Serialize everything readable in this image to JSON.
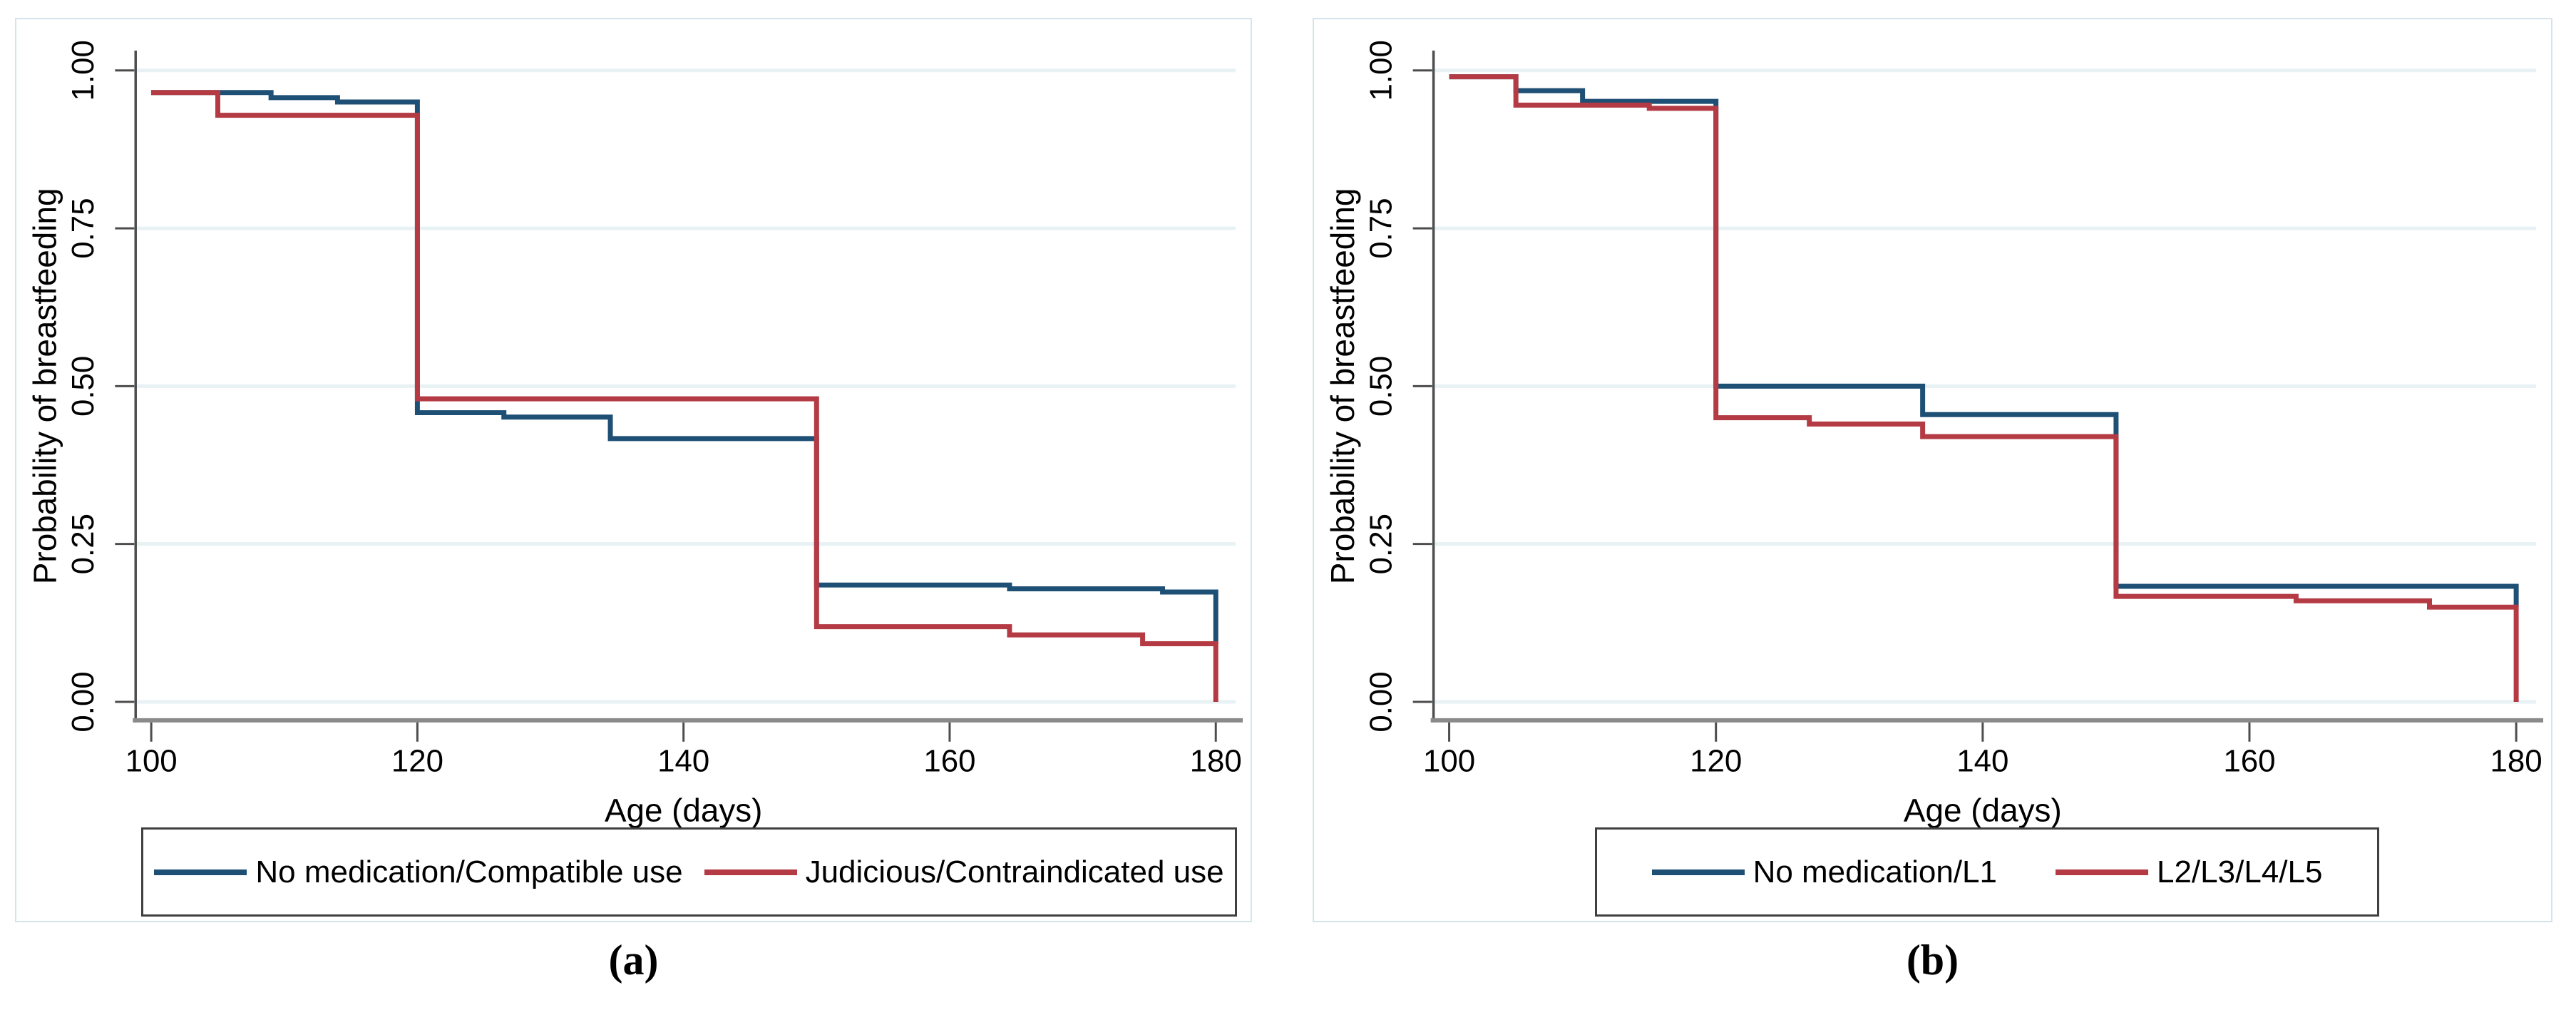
{
  "figure": {
    "captions": [
      "(a)",
      "(b)"
    ]
  },
  "styles": {
    "series_blue": "#1e4f74",
    "series_red": "#b43a44",
    "gridline": "#e8f1f3",
    "panel_border": "#d5e3eb",
    "x_axis_line": "#8a8a8a",
    "axis_dark": "#4d4d4d",
    "legend_border": "#404040",
    "text": "#000000",
    "background": "#ffffff"
  },
  "chart_data": [
    {
      "type": "line",
      "subtype": "kaplan-meier-step",
      "panel": "a",
      "title": "",
      "xlabel": "Age (days)",
      "ylabel": "Probability of breastfeeding",
      "xticks": [
        100,
        120,
        140,
        160,
        180
      ],
      "yticks": [
        1.0,
        0.75,
        0.5,
        0.25,
        0.0
      ],
      "ytick_labels": [
        "1.00",
        "0.75",
        "0.50",
        "0.25",
        "0.00"
      ],
      "xlim": [
        98.8,
        182
      ],
      "ylim": [
        0,
        1
      ],
      "grid": "horizontal",
      "legend_position": "bottom",
      "series": [
        {
          "name": "No medication/Compatible use",
          "color": "#1e4f74",
          "steps": [
            [
              100,
              0.965
            ],
            [
              109,
              0.957
            ],
            [
              114,
              0.95
            ],
            [
              120,
              0.458
            ],
            [
              126.5,
              0.451
            ],
            [
              134.5,
              0.417
            ],
            [
              150,
              0.185
            ],
            [
              164.5,
              0.179
            ],
            [
              176,
              0.174
            ]
          ],
          "end": {
            "x": 180,
            "drop_to": 0.092
          }
        },
        {
          "name": "Judicious/Contraindicated use",
          "color": "#b43a44",
          "steps": [
            [
              100,
              0.965
            ],
            [
              105,
              0.929
            ],
            [
              120,
              0.48
            ],
            [
              150,
              0.119
            ],
            [
              164.5,
              0.106
            ],
            [
              174.5,
              0.092
            ]
          ],
          "end": {
            "x": 180,
            "drop_to": 0.0
          }
        }
      ]
    },
    {
      "type": "line",
      "subtype": "kaplan-meier-step",
      "panel": "b",
      "title": "",
      "xlabel": "Age (days)",
      "ylabel": "Probability of breastfeeding",
      "xticks": [
        100,
        120,
        140,
        160,
        180
      ],
      "yticks": [
        1.0,
        0.75,
        0.5,
        0.25,
        0.0
      ],
      "ytick_labels": [
        "1.00",
        "0.75",
        "0.50",
        "0.25",
        "0.00"
      ],
      "xlim": [
        98.8,
        182
      ],
      "ylim": [
        0,
        1
      ],
      "grid": "horizontal",
      "legend_position": "bottom",
      "series": [
        {
          "name": "No medication/L1",
          "color": "#1e4f74",
          "steps": [
            [
              100,
              0.99
            ],
            [
              105,
              0.968
            ],
            [
              110,
              0.951
            ],
            [
              120,
              0.5
            ],
            [
              135.5,
              0.455
            ],
            [
              150,
              0.183
            ]
          ],
          "end": {
            "x": 180,
            "drop_to": 0.15
          }
        },
        {
          "name": "L2/L3/L4/L5",
          "color": "#b43a44",
          "steps": [
            [
              100,
              0.99
            ],
            [
              105,
              0.945
            ],
            [
              115,
              0.94
            ],
            [
              120,
              0.45
            ],
            [
              127,
              0.44
            ],
            [
              135.5,
              0.42
            ],
            [
              150,
              0.167
            ],
            [
              163.5,
              0.16
            ],
            [
              173.5,
              0.15
            ]
          ],
          "end": {
            "x": 180,
            "drop_to": 0.0
          }
        }
      ]
    }
  ]
}
